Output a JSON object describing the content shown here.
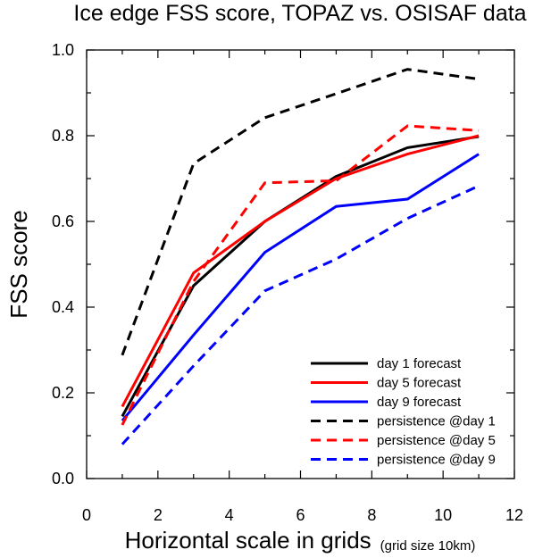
{
  "chart_data": {
    "type": "line",
    "title": "Ice edge FSS score, TOPAZ vs. OSISAF data",
    "xlabel": "Horizontal scale in grids",
    "xlabel_note": "(grid size 10km)",
    "ylabel": "FSS score",
    "xlim": [
      0,
      12
    ],
    "ylim": [
      0,
      1
    ],
    "x_ticks": [
      0,
      2,
      4,
      6,
      8,
      10,
      12
    ],
    "y_ticks": [
      0,
      0.2,
      0.4,
      0.6,
      0.8,
      1.0
    ],
    "x_tick_labels": [
      "0",
      "2",
      "4",
      "6",
      "8",
      "10",
      "12"
    ],
    "y_tick_labels": [
      "0.0",
      "0.2",
      "0.4",
      "0.6",
      "0.8",
      "1.0"
    ],
    "grid": false,
    "legend_position": "bottom-right",
    "x": [
      1,
      3,
      5,
      7,
      9,
      11
    ],
    "series": [
      {
        "name": "day 1 forecast",
        "color": "#000000",
        "dash": "solid",
        "values": [
          0.145,
          0.45,
          0.6,
          0.705,
          0.772,
          0.798
        ]
      },
      {
        "name": "day 5 forecast",
        "color": "#ff0000",
        "dash": "solid",
        "values": [
          0.168,
          0.48,
          0.6,
          0.7,
          0.757,
          0.8
        ]
      },
      {
        "name": "day 9 forecast",
        "color": "#0000ff",
        "dash": "solid",
        "values": [
          0.135,
          0.335,
          0.528,
          0.635,
          0.652,
          0.757
        ]
      },
      {
        "name": "persistence @day 1",
        "color": "#000000",
        "dash": "dashed",
        "values": [
          0.288,
          0.735,
          0.842,
          0.898,
          0.955,
          0.932
        ]
      },
      {
        "name": "persistence @day 5",
        "color": "#ff0000",
        "dash": "dashed",
        "values": [
          0.125,
          0.46,
          0.69,
          0.695,
          0.823,
          0.812
        ]
      },
      {
        "name": "persistence @day 9",
        "color": "#0000ff",
        "dash": "dashed",
        "values": [
          0.08,
          0.263,
          0.438,
          0.512,
          0.607,
          0.683
        ]
      }
    ]
  }
}
